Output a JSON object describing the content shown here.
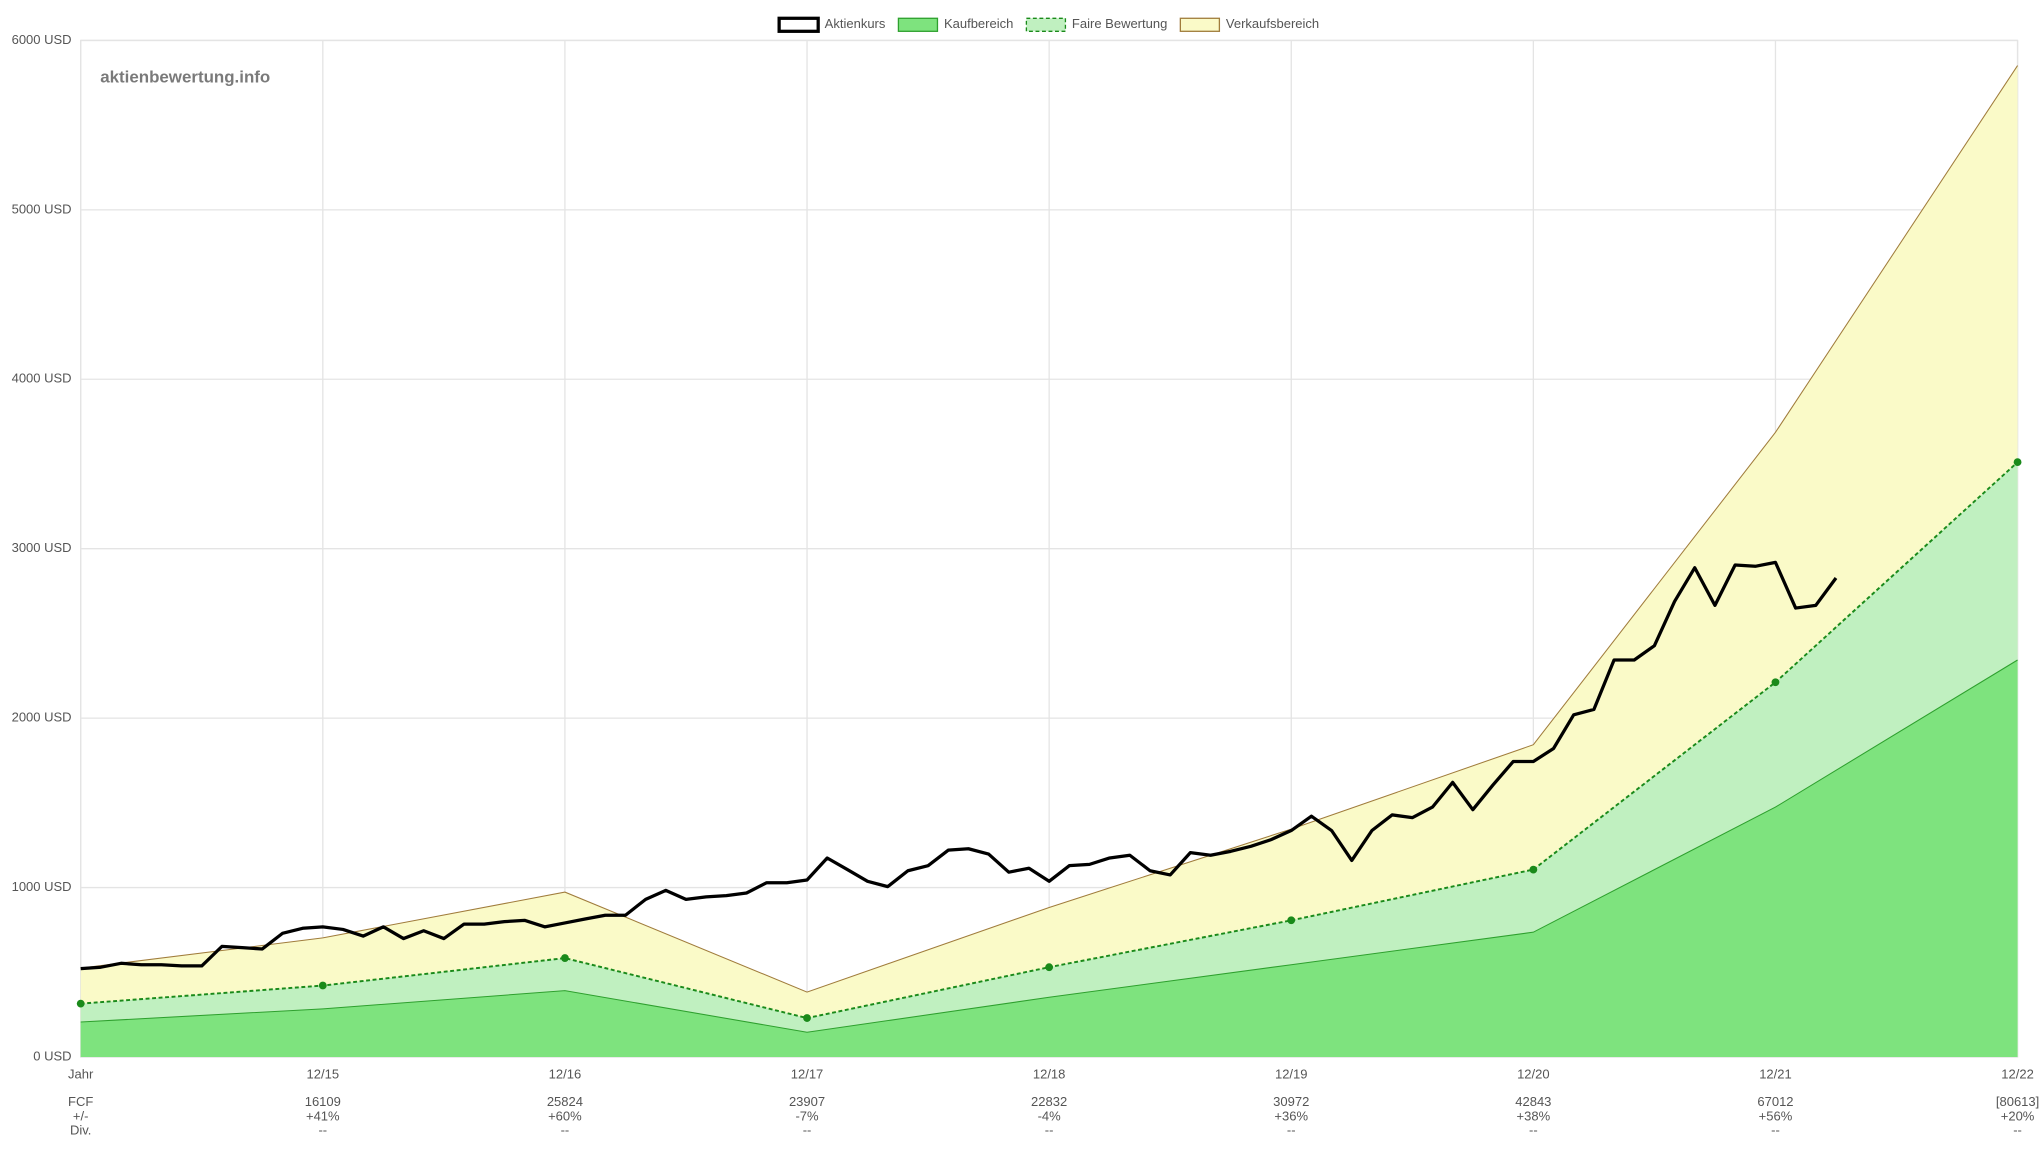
{
  "chart_data": {
    "type": "line",
    "watermark": "aktienbewertung.info",
    "xlim": [
      0,
      96
    ],
    "xticks": [
      {
        "value": 0,
        "label": "Jahr"
      },
      {
        "value": 12,
        "label": "12/15"
      },
      {
        "value": 24,
        "label": "12/16"
      },
      {
        "value": 36,
        "label": "12/17"
      },
      {
        "value": 48,
        "label": "12/18"
      },
      {
        "value": 60,
        "label": "12/19"
      },
      {
        "value": 72,
        "label": "12/20"
      },
      {
        "value": 84,
        "label": "12/21"
      },
      {
        "value": 96,
        "label": "12/22"
      }
    ],
    "ylim": [
      0,
      6000
    ],
    "yticks": [
      {
        "value": 0,
        "label": "0 USD"
      },
      {
        "value": 1000,
        "label": "1000 USD"
      },
      {
        "value": 2000,
        "label": "2000 USD"
      },
      {
        "value": 3000,
        "label": "3000 USD"
      },
      {
        "value": 4000,
        "label": "4000 USD"
      },
      {
        "value": 5000,
        "label": "5000 USD"
      },
      {
        "value": 6000,
        "label": "6000 USD"
      }
    ],
    "grid": true,
    "legend": "top",
    "series": [
      {
        "name": "Aktienkurs",
        "color": "#000000",
        "x": [
          0,
          1,
          2,
          3,
          4,
          5,
          6,
          7,
          8,
          9,
          10,
          11,
          12,
          13,
          14,
          15,
          16,
          17,
          18,
          19,
          20,
          21,
          22,
          23,
          24,
          25,
          26,
          27,
          28,
          29,
          30,
          31,
          32,
          33,
          34,
          35,
          36,
          37,
          38,
          39,
          40,
          41,
          42,
          43,
          44,
          45,
          46,
          47,
          48,
          49,
          50,
          51,
          52,
          53,
          54,
          55,
          56,
          57,
          58,
          59,
          60,
          61,
          62,
          63,
          64,
          65,
          66,
          67,
          68,
          69,
          70,
          71,
          72,
          73,
          74,
          75,
          76,
          77,
          78,
          79,
          80,
          81,
          82,
          83,
          84,
          85,
          86,
          87
        ],
        "values": [
          522,
          530,
          553,
          545,
          545,
          538,
          538,
          653,
          645,
          638,
          730,
          760,
          768,
          753,
          714,
          768,
          699,
          745,
          699,
          784,
          784,
          799,
          807,
          768,
          791,
          814,
          837,
          837,
          930,
          983,
          930,
          945,
          953,
          968,
          1029,
          1029,
          1045,
          1175,
          1106,
          1037,
          1006,
          1099,
          1129,
          1221,
          1229,
          1198,
          1091,
          1114,
          1037,
          1129,
          1137,
          1175,
          1191,
          1099,
          1075,
          1206,
          1191,
          1214,
          1244,
          1283,
          1337,
          1421,
          1337,
          1160,
          1337,
          1429,
          1413,
          1475,
          1621,
          1460,
          1606,
          1744,
          1744,
          1821,
          2020,
          2051,
          2343,
          2343,
          2428,
          2689,
          2888,
          2666,
          2904,
          2896,
          2919,
          2650,
          2666,
          2827
        ]
      },
      {
        "name": "Kaufbereich",
        "color": "#2ea02e",
        "fill": "#7ee37e",
        "x": [
          0,
          12,
          24,
          36,
          48,
          60,
          72,
          84,
          96
        ],
        "values": [
          207,
          284,
          392,
          146,
          353,
          545,
          737,
          1475,
          2343
        ]
      },
      {
        "name": "Faire Bewertung",
        "color": "#1a8a1a",
        "fill": "#c0f0c0",
        "dashed": true,
        "markers": true,
        "x": [
          0,
          12,
          24,
          36,
          48,
          60,
          72,
          84,
          96
        ],
        "values": [
          315,
          422,
          584,
          230,
          530,
          807,
          1106,
          2212,
          3511
        ]
      },
      {
        "name": "Verkaufsbereich",
        "color": "#a07c3c",
        "fill": "#fafac8",
        "x": [
          0,
          12,
          24,
          36,
          48,
          60,
          72,
          84,
          96
        ],
        "values": [
          525,
          703,
          973,
          383,
          883,
          1345,
          1843,
          3687,
          5852
        ]
      }
    ],
    "table": {
      "rows": [
        [
          "FCF",
          16109,
          25824,
          23907,
          22832,
          30972,
          42843,
          67012,
          "[80613]"
        ],
        [
          "+/-",
          "+41%",
          "+60%",
          "-7%",
          "-4%",
          "+36%",
          "+38%",
          "+56%",
          "+20%"
        ],
        [
          "Div.",
          "--",
          "--",
          "--",
          "--",
          "--",
          "--",
          "--",
          "--"
        ]
      ]
    }
  }
}
